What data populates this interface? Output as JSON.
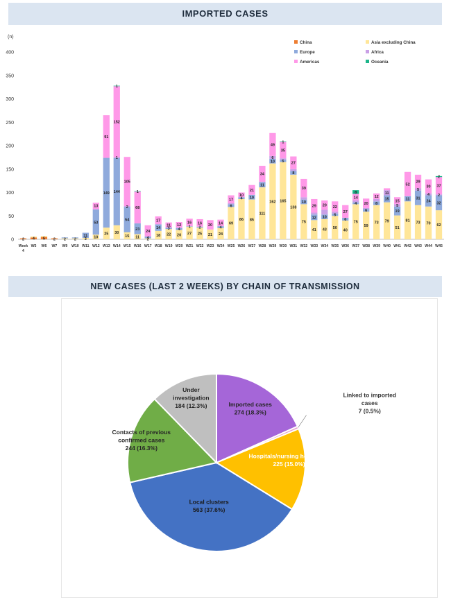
{
  "titles": {
    "top": "IMPORTED CASES",
    "bottom": "NEW CASES (LAST 2 WEEKS) BY CHAIN OF TRANSMISSION"
  },
  "chart_data": [
    {
      "type": "bar",
      "stacked": true,
      "title": "IMPORTED CASES",
      "ylabel": "(n)",
      "ylim": [
        0,
        400
      ],
      "yticks": [
        0,
        50,
        100,
        150,
        200,
        250,
        300,
        350,
        400
      ],
      "legend_position": "top-right",
      "categories": [
        "Week 4",
        "W5",
        "W6",
        "W7",
        "W9",
        "W10",
        "W11",
        "W12",
        "W13",
        "W14",
        "W15",
        "W16",
        "W17",
        "W18",
        "W19",
        "W20",
        "W21",
        "W22",
        "W23",
        "W24",
        "W25",
        "W26",
        "W27",
        "W28",
        "W29",
        "W30",
        "W31",
        "W32",
        "W33",
        "W34",
        "W35",
        "W36",
        "W37",
        "W38",
        "W39",
        "W40",
        "W41",
        "W42",
        "W43",
        "W44",
        "W45"
      ],
      "series": [
        {
          "name": "China",
          "color": "#ed7d31",
          "values": [
            2,
            4,
            5,
            2,
            0,
            0,
            0,
            0,
            0,
            0,
            0,
            0,
            0,
            0,
            0,
            0,
            0,
            0,
            0,
            0,
            0,
            0,
            0,
            0,
            0,
            0,
            0,
            0,
            0,
            0,
            0,
            0,
            0,
            0,
            0,
            0,
            0,
            0,
            0,
            0,
            0
          ]
        },
        {
          "name": "Asia excluding China",
          "color": "#ffe699",
          "values": [
            0,
            2,
            2,
            0,
            2,
            2,
            3,
            10,
            25,
            30,
            15,
            11,
            2,
            18,
            22,
            20,
            27,
            25,
            21,
            24,
            69,
            86,
            85,
            111,
            162,
            165,
            138,
            75,
            41,
            43,
            50,
            40,
            75,
            59,
            73,
            79,
            51,
            81,
            73,
            70,
            62
          ]
        },
        {
          "name": "Europe",
          "color": "#8faadc",
          "values": [
            0,
            0,
            0,
            0,
            2,
            2,
            11,
            53,
            149,
            144,
            54,
            23,
            4,
            14,
            3,
            4,
            1,
            2,
            0,
            4,
            6,
            4,
            10,
            11,
            10,
            5,
            8,
            10,
            12,
            10,
            5,
            6,
            4,
            6,
            8,
            15,
            19,
            11,
            31,
            24,
            32
          ]
        },
        {
          "name": "Africa",
          "color": "#c9a0e6",
          "values": [
            0,
            0,
            0,
            0,
            0,
            0,
            0,
            2,
            0,
            1,
            2,
            0,
            0,
            0,
            0,
            1,
            0,
            0,
            0,
            0,
            2,
            0,
            0,
            1,
            6,
            3,
            4,
            5,
            4,
            10,
            4,
            0,
            4,
            2,
            5,
            11,
            5,
            0,
            5,
            4,
            2
          ]
        },
        {
          "name": "Americas",
          "color": "#ff99e8",
          "values": [
            0,
            0,
            0,
            0,
            0,
            0,
            0,
            13,
            91,
            152,
            105,
            68,
            24,
            17,
            11,
            12,
            16,
            16,
            20,
            14,
            17,
            10,
            21,
            34,
            49,
            35,
            27,
            39,
            29,
            20,
            22,
            27,
            14,
            20,
            12,
            4,
            15,
            52,
            29,
            30,
            37
          ]
        },
        {
          "name": "Oceania",
          "color": "#1cb58a",
          "values": [
            0,
            0,
            0,
            0,
            0,
            0,
            0,
            0,
            0,
            1,
            0,
            1,
            0,
            0,
            0,
            0,
            0,
            0,
            0,
            0,
            0,
            0,
            0,
            0,
            0,
            1,
            0,
            0,
            0,
            0,
            0,
            0,
            8,
            0,
            0,
            0,
            0,
            0,
            0,
            0,
            2
          ]
        }
      ],
      "data_labels": [
        {
          "cat": 0,
          "series": 0,
          "text": "2"
        },
        {
          "cat": 1,
          "series": 0,
          "text": "4"
        },
        {
          "cat": 2,
          "series": 0,
          "text": "5"
        },
        {
          "cat": 3,
          "series": 0,
          "text": "2"
        },
        {
          "cat": 4,
          "series": 1,
          "text": "2"
        },
        {
          "cat": 5,
          "series": 1,
          "text": "2"
        },
        {
          "cat": 6,
          "series": 1,
          "text": "3"
        },
        {
          "cat": 6,
          "series": 2,
          "text": "11"
        },
        {
          "cat": 7,
          "series": 1,
          "text": "10"
        },
        {
          "cat": 7,
          "series": 2,
          "text": "53"
        },
        {
          "cat": 7,
          "series": 4,
          "text": "13"
        },
        {
          "cat": 8,
          "series": 1,
          "text": "25"
        },
        {
          "cat": 8,
          "series": 2,
          "text": "149"
        },
        {
          "cat": 8,
          "series": 4,
          "text": "91"
        },
        {
          "cat": 9,
          "series": 1,
          "text": "30"
        },
        {
          "cat": 9,
          "series": 2,
          "text": "144"
        },
        {
          "cat": 9,
          "series": 3,
          "text": "1"
        },
        {
          "cat": 9,
          "series": 4,
          "text": "152"
        },
        {
          "cat": 9,
          "series": 5,
          "text": "1"
        },
        {
          "cat": 10,
          "series": 1,
          "text": "15"
        },
        {
          "cat": 10,
          "series": 2,
          "text": "54"
        },
        {
          "cat": 10,
          "series": 4,
          "text": "105"
        },
        {
          "cat": 10,
          "series": 3,
          "text": "2"
        },
        {
          "cat": 11,
          "series": 1,
          "text": "11"
        },
        {
          "cat": 11,
          "series": 2,
          "text": "23"
        },
        {
          "cat": 11,
          "series": 4,
          "text": "68"
        },
        {
          "cat": 11,
          "series": 5,
          "text": "1"
        },
        {
          "cat": 12,
          "series": 1,
          "text": "2"
        },
        {
          "cat": 12,
          "series": 2,
          "text": "4"
        },
        {
          "cat": 12,
          "series": 4,
          "text": "24"
        },
        {
          "cat": 13,
          "series": 1,
          "text": "18"
        },
        {
          "cat": 13,
          "series": 2,
          "text": "14"
        },
        {
          "cat": 13,
          "series": 4,
          "text": "17"
        },
        {
          "cat": 14,
          "series": 1,
          "text": "22"
        },
        {
          "cat": 14,
          "series": 2,
          "text": "3"
        },
        {
          "cat": 14,
          "series": 4,
          "text": "11"
        },
        {
          "cat": 15,
          "series": 1,
          "text": "20"
        },
        {
          "cat": 15,
          "series": 2,
          "text": "4"
        },
        {
          "cat": 15,
          "series": 4,
          "text": "12"
        },
        {
          "cat": 16,
          "series": 1,
          "text": "27"
        },
        {
          "cat": 16,
          "series": 2,
          "text": "1"
        },
        {
          "cat": 16,
          "series": 4,
          "text": "16"
        },
        {
          "cat": 17,
          "series": 1,
          "text": "25"
        },
        {
          "cat": 17,
          "series": 2,
          "text": "2"
        },
        {
          "cat": 17,
          "series": 4,
          "text": "16"
        },
        {
          "cat": 18,
          "series": 1,
          "text": "21"
        },
        {
          "cat": 18,
          "series": 4,
          "text": "20"
        },
        {
          "cat": 19,
          "series": 1,
          "text": "24"
        },
        {
          "cat": 19,
          "series": 2,
          "text": "4"
        },
        {
          "cat": 19,
          "series": 4,
          "text": "14"
        },
        {
          "cat": 20,
          "series": 1,
          "text": "69"
        },
        {
          "cat": 20,
          "series": 2,
          "text": "6"
        },
        {
          "cat": 20,
          "series": 4,
          "text": "17"
        },
        {
          "cat": 21,
          "series": 1,
          "text": "86"
        },
        {
          "cat": 21,
          "series": 2,
          "text": "4"
        },
        {
          "cat": 21,
          "series": 4,
          "text": "10"
        },
        {
          "cat": 22,
          "series": 1,
          "text": "85"
        },
        {
          "cat": 22,
          "series": 2,
          "text": "10"
        },
        {
          "cat": 22,
          "series": 4,
          "text": "21"
        },
        {
          "cat": 23,
          "series": 1,
          "text": "111"
        },
        {
          "cat": 23,
          "series": 2,
          "text": "11"
        },
        {
          "cat": 23,
          "series": 4,
          "text": "34"
        },
        {
          "cat": 24,
          "series": 1,
          "text": "162"
        },
        {
          "cat": 24,
          "series": 2,
          "text": "10"
        },
        {
          "cat": 24,
          "series": 3,
          "text": "6"
        },
        {
          "cat": 24,
          "series": 4,
          "text": "49"
        },
        {
          "cat": 25,
          "series": 1,
          "text": "165"
        },
        {
          "cat": 25,
          "series": 2,
          "text": "5"
        },
        {
          "cat": 25,
          "series": 4,
          "text": "35"
        },
        {
          "cat": 25,
          "series": 5,
          "text": "1"
        },
        {
          "cat": 26,
          "series": 1,
          "text": "138"
        },
        {
          "cat": 26,
          "series": 2,
          "text": "8"
        },
        {
          "cat": 26,
          "series": 4,
          "text": "27"
        },
        {
          "cat": 27,
          "series": 1,
          "text": "75"
        },
        {
          "cat": 27,
          "series": 2,
          "text": "10"
        },
        {
          "cat": 27,
          "series": 4,
          "text": "39"
        },
        {
          "cat": 28,
          "series": 1,
          "text": "41"
        },
        {
          "cat": 28,
          "series": 2,
          "text": "12"
        },
        {
          "cat": 28,
          "series": 4,
          "text": "29"
        },
        {
          "cat": 29,
          "series": 1,
          "text": "43"
        },
        {
          "cat": 29,
          "series": 2,
          "text": "10"
        },
        {
          "cat": 29,
          "series": 4,
          "text": "20"
        },
        {
          "cat": 30,
          "series": 1,
          "text": "50"
        },
        {
          "cat": 30,
          "series": 2,
          "text": "5"
        },
        {
          "cat": 30,
          "series": 4,
          "text": "22"
        },
        {
          "cat": 31,
          "series": 1,
          "text": "40"
        },
        {
          "cat": 31,
          "series": 2,
          "text": "6"
        },
        {
          "cat": 31,
          "series": 4,
          "text": "27"
        },
        {
          "cat": 32,
          "series": 1,
          "text": "75"
        },
        {
          "cat": 32,
          "series": 2,
          "text": "4"
        },
        {
          "cat": 32,
          "series": 4,
          "text": "14"
        },
        {
          "cat": 32,
          "series": 5,
          "text": "8"
        },
        {
          "cat": 33,
          "series": 1,
          "text": "59"
        },
        {
          "cat": 33,
          "series": 2,
          "text": "6"
        },
        {
          "cat": 33,
          "series": 4,
          "text": "20"
        },
        {
          "cat": 34,
          "series": 1,
          "text": "73"
        },
        {
          "cat": 34,
          "series": 2,
          "text": "8"
        },
        {
          "cat": 34,
          "series": 4,
          "text": "12"
        },
        {
          "cat": 35,
          "series": 1,
          "text": "79"
        },
        {
          "cat": 35,
          "series": 2,
          "text": "15"
        },
        {
          "cat": 35,
          "series": 3,
          "text": "11"
        },
        {
          "cat": 36,
          "series": 1,
          "text": "51"
        },
        {
          "cat": 36,
          "series": 2,
          "text": "19"
        },
        {
          "cat": 36,
          "series": 3,
          "text": "5"
        },
        {
          "cat": 36,
          "series": 4,
          "text": "15"
        },
        {
          "cat": 37,
          "series": 1,
          "text": "81"
        },
        {
          "cat": 37,
          "series": 2,
          "text": "11"
        },
        {
          "cat": 37,
          "series": 4,
          "text": "52"
        },
        {
          "cat": 38,
          "series": 1,
          "text": "73"
        },
        {
          "cat": 38,
          "series": 2,
          "text": "31"
        },
        {
          "cat": 38,
          "series": 3,
          "text": "5"
        },
        {
          "cat": 38,
          "series": 4,
          "text": "29"
        },
        {
          "cat": 39,
          "series": 1,
          "text": "70"
        },
        {
          "cat": 39,
          "series": 2,
          "text": "24"
        },
        {
          "cat": 39,
          "series": 3,
          "text": "4"
        },
        {
          "cat": 39,
          "series": 4,
          "text": "30"
        },
        {
          "cat": 40,
          "series": 1,
          "text": "62"
        },
        {
          "cat": 40,
          "series": 2,
          "text": "32"
        },
        {
          "cat": 40,
          "series": 3,
          "text": "2"
        },
        {
          "cat": 40,
          "series": 4,
          "text": "37"
        },
        {
          "cat": 40,
          "series": 5,
          "text": "2"
        }
      ]
    },
    {
      "type": "pie",
      "title": "NEW CASES (LAST 2 WEEKS) BY CHAIN OF TRANSMISSION",
      "slices": [
        {
          "label": "Imported cases",
          "value": 274,
          "display": "274 (18.3%)",
          "color": "#a566d8",
          "label_color": "#262626"
        },
        {
          "label": "Linked to imported cases",
          "value": 7,
          "display": "7 (0.5%)",
          "color": "#e8a0c8",
          "label_color": "#333333"
        },
        {
          "label": "Hospitals/nursing homes/etc",
          "value": 225,
          "display": "225 (15.0%)",
          "color": "#ffc000",
          "label_color": "#ffffff"
        },
        {
          "label": "Local clusters",
          "value": 563,
          "display": "563 (37.6%)",
          "color": "#4472c4",
          "label_color": "#1a1a1a"
        },
        {
          "label": "Contacts of previous confirmed cases",
          "value": 244,
          "display": "244 (16.3%)",
          "color": "#70ad47",
          "label_color": "#262626"
        },
        {
          "label": "Under investigation",
          "value": 184,
          "display": "184 (12.3%)",
          "color": "#bfbfbf",
          "label_color": "#262626"
        }
      ]
    }
  ]
}
